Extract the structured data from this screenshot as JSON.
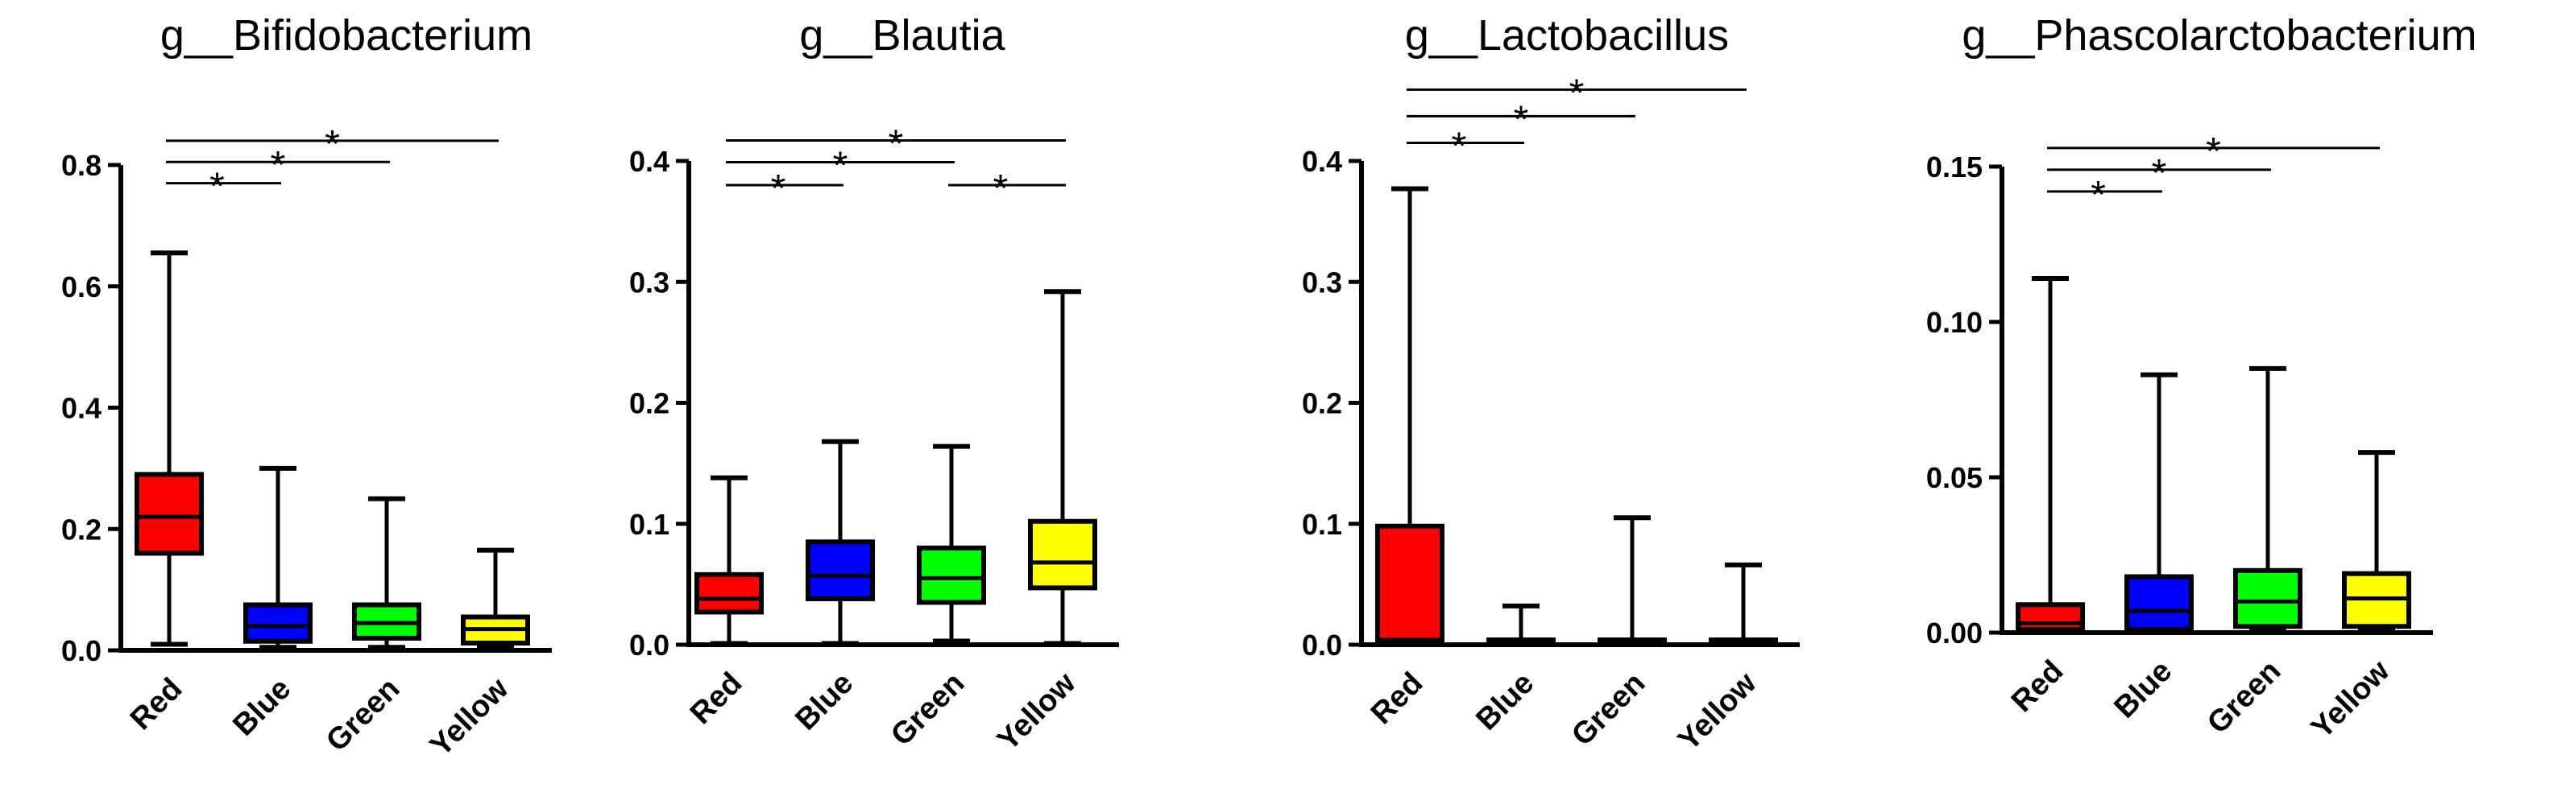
{
  "chart_data": [
    {
      "type": "boxplot",
      "title": "g__Bifidobacterium",
      "categories": [
        "Red",
        "Blue",
        "Green",
        "Yellow"
      ],
      "colors": [
        "#ff0000",
        "#0000ff",
        "#00ff00",
        "#ffff00"
      ],
      "ylim": [
        0,
        0.8
      ],
      "yticks": [
        0.0,
        0.2,
        0.4,
        0.6,
        0.8
      ],
      "ytick_labels": [
        "0.0",
        "0.2",
        "0.4",
        "0.6",
        "0.8"
      ],
      "boxes": [
        {
          "min": 0.01,
          "q1": 0.16,
          "median": 0.22,
          "q3": 0.29,
          "max": 0.655
        },
        {
          "min": 0.005,
          "q1": 0.015,
          "median": 0.04,
          "q3": 0.075,
          "max": 0.3
        },
        {
          "min": 0.005,
          "q1": 0.02,
          "median": 0.045,
          "q3": 0.075,
          "max": 0.25
        },
        {
          "min": 0.005,
          "q1": 0.012,
          "median": 0.035,
          "q3": 0.055,
          "max": 0.165
        }
      ],
      "significance": [
        {
          "from": 0,
          "to": 1,
          "y": 0.77,
          "label": "*"
        },
        {
          "from": 0,
          "to": 2,
          "y": 0.805,
          "label": "*"
        },
        {
          "from": 0,
          "to": 3,
          "y": 0.84,
          "label": "*"
        }
      ]
    },
    {
      "type": "boxplot",
      "title": "g__Blautia",
      "categories": [
        "Red",
        "Blue",
        "Green",
        "Yellow"
      ],
      "colors": [
        "#ff0000",
        "#0000ff",
        "#00ff00",
        "#ffff00"
      ],
      "ylim": [
        0,
        0.4
      ],
      "yticks": [
        0.0,
        0.1,
        0.2,
        0.3,
        0.4
      ],
      "ytick_labels": [
        "0.0",
        "0.1",
        "0.2",
        "0.3",
        "0.4"
      ],
      "boxes": [
        {
          "min": 0.001,
          "q1": 0.027,
          "median": 0.038,
          "q3": 0.058,
          "max": 0.138
        },
        {
          "min": 0.001,
          "q1": 0.038,
          "median": 0.057,
          "q3": 0.085,
          "max": 0.168
        },
        {
          "min": 0.003,
          "q1": 0.035,
          "median": 0.055,
          "q3": 0.08,
          "max": 0.164
        },
        {
          "min": 0.001,
          "q1": 0.047,
          "median": 0.068,
          "q3": 0.102,
          "max": 0.292
        }
      ],
      "significance": [
        {
          "from": 0,
          "to": 1,
          "y": 0.38,
          "label": "*"
        },
        {
          "from": 0,
          "to": 2,
          "y": 0.399,
          "label": "*"
        },
        {
          "from": 2,
          "to": 3,
          "y": 0.38,
          "label": "*"
        },
        {
          "from": 0,
          "to": 3,
          "y": 0.417,
          "label": "*"
        }
      ]
    },
    {
      "type": "boxplot",
      "title": "g__Lactobacillus",
      "categories": [
        "Red",
        "Blue",
        "Green",
        "Yellow"
      ],
      "colors": [
        "#ff0000",
        "#0000ff",
        "#00ff00",
        "#ffff00"
      ],
      "ylim": [
        0,
        0.4
      ],
      "yticks": [
        0.0,
        0.1,
        0.2,
        0.3,
        0.4
      ],
      "ytick_labels": [
        "0.0",
        "0.1",
        "0.2",
        "0.3",
        "0.4"
      ],
      "boxes": [
        {
          "min": 0.002,
          "q1": 0.002,
          "median": 0.004,
          "q3": 0.098,
          "max": 0.377
        },
        {
          "min": 0.001,
          "q1": 0.002,
          "median": 0.003,
          "q3": 0.004,
          "max": 0.032
        },
        {
          "min": 0.001,
          "q1": 0.002,
          "median": 0.003,
          "q3": 0.004,
          "max": 0.105
        },
        {
          "min": 0.001,
          "q1": 0.002,
          "median": 0.003,
          "q3": 0.004,
          "max": 0.066
        }
      ],
      "significance": [
        {
          "from": 0,
          "to": 1,
          "y": 0.415,
          "label": "*"
        },
        {
          "from": 0,
          "to": 2,
          "y": 0.437,
          "label": "*"
        },
        {
          "from": 0,
          "to": 3,
          "y": 0.459,
          "label": "*"
        }
      ]
    },
    {
      "type": "boxplot",
      "title": "g__Phascolarctobacterium",
      "categories": [
        "Red",
        "Blue",
        "Green",
        "Yellow"
      ],
      "colors": [
        "#ff0000",
        "#0000ff",
        "#00ff00",
        "#ffff00"
      ],
      "ylim": [
        0,
        0.15
      ],
      "yticks": [
        0.0,
        0.05,
        0.1,
        0.15
      ],
      "ytick_labels": [
        "0.00",
        "0.05",
        "0.10",
        "0.15"
      ],
      "boxes": [
        {
          "min": 0.0005,
          "q1": 0.001,
          "median": 0.003,
          "q3": 0.009,
          "max": 0.114
        },
        {
          "min": 0.0005,
          "q1": 0.001,
          "median": 0.007,
          "q3": 0.018,
          "max": 0.083
        },
        {
          "min": 0.0005,
          "q1": 0.002,
          "median": 0.01,
          "q3": 0.02,
          "max": 0.085
        },
        {
          "min": 0.0005,
          "q1": 0.002,
          "median": 0.011,
          "q3": 0.019,
          "max": 0.058
        }
      ],
      "significance": [
        {
          "from": 0,
          "to": 1,
          "y": 0.142,
          "label": "*"
        },
        {
          "from": 0,
          "to": 2,
          "y": 0.149,
          "label": "*"
        },
        {
          "from": 0,
          "to": 3,
          "y": 0.156,
          "label": "*"
        }
      ]
    }
  ]
}
